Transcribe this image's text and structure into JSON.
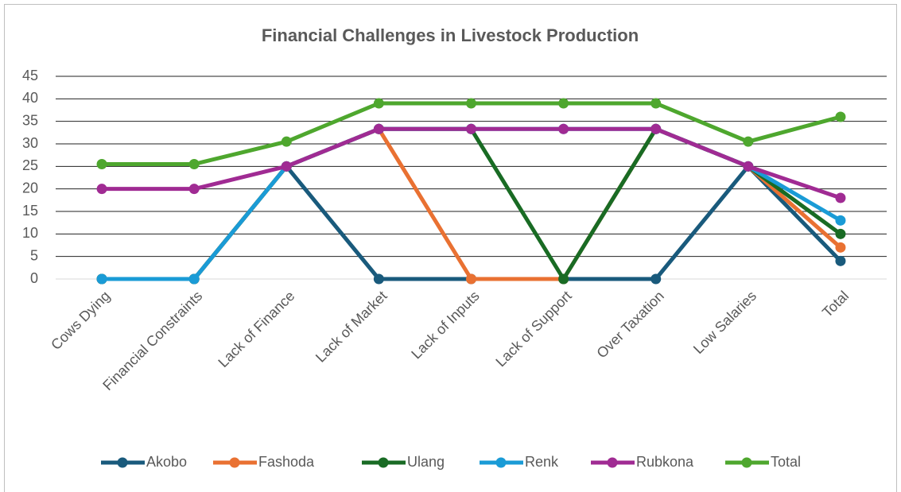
{
  "chart_data": {
    "type": "line",
    "title": "Financial Challenges in Livestock Production",
    "categories": [
      "Cows Dying",
      "Financial Constraints",
      "Lack of Finance",
      "Lack of Market",
      "Lack of Inputs",
      "Lack of Support",
      "Over Taxation",
      "Low Salaries",
      "Total"
    ],
    "series": [
      {
        "name": "Akobo",
        "color": "#195a7c",
        "values": [
          0,
          0,
          25,
          0,
          0,
          0,
          0,
          25,
          4
        ]
      },
      {
        "name": "Fashoda",
        "color": "#e97132",
        "values": [
          0,
          0,
          25,
          33.3,
          0,
          0,
          33.3,
          25,
          7
        ]
      },
      {
        "name": "Ulang",
        "color": "#196b24",
        "values": [
          0,
          0,
          25,
          33.3,
          33.3,
          0,
          33.3,
          25,
          10
        ]
      },
      {
        "name": "Renk",
        "color": "#1a9bd6",
        "values": [
          0,
          0,
          25,
          33.3,
          33.3,
          33.3,
          33.3,
          25,
          13
        ]
      },
      {
        "name": "Rubkona",
        "color": "#a02b93",
        "values": [
          20,
          20,
          25,
          33.3,
          33.3,
          33.3,
          33.3,
          25,
          18
        ]
      },
      {
        "name": "Total",
        "color": "#4ea72e",
        "values": [
          25.5,
          25.5,
          30.5,
          39,
          39,
          39,
          39,
          30.5,
          36
        ]
      }
    ],
    "ylim": [
      0,
      45
    ],
    "yticks": [
      0,
      5,
      10,
      15,
      20,
      25,
      30,
      35,
      40,
      45
    ],
    "grid": true,
    "legend": "bottom"
  }
}
